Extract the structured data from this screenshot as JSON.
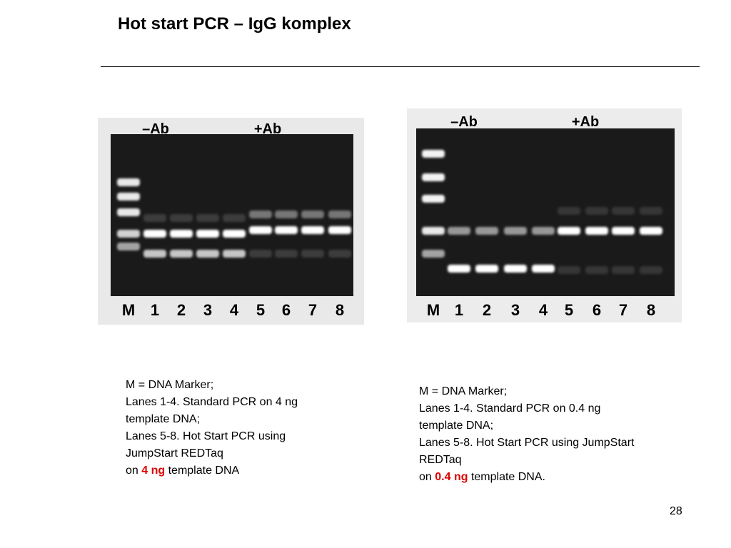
{
  "title": "Hot start PCR – IgG komplex",
  "gels": [
    {
      "groups": [
        "–Ab",
        "+Ab"
      ],
      "lanes": [
        "M",
        "1",
        "2",
        "3",
        "4",
        "5",
        "6",
        "7",
        "8"
      ],
      "caption": {
        "lines": [
          "M = DNA Marker;",
          "Lanes 1-4. Standard PCR on 4 ng",
          "template DNA;",
          "Lanes 5-8. Hot Start PCR using",
          "JumpStart REDTaq"
        ],
        "last": {
          "prefix": "on",
          "highlight": "4 ng",
          "suffix": "template DNA"
        }
      }
    },
    {
      "groups": [
        "–Ab",
        "+Ab"
      ],
      "lanes": [
        "M",
        "1",
        "2",
        "3",
        "4",
        "5",
        "6",
        "7",
        "8"
      ],
      "caption": {
        "lines": [
          "M = DNA Marker;",
          "Lanes 1-4. Standard PCR on 0.4 ng",
          "template DNA;",
          "Lanes 5-8. Hot Start PCR using JumpStart",
          "REDTaq"
        ],
        "last": {
          "prefix": "on",
          "highlight": "0.4 ng",
          "suffix": "template DNA."
        }
      }
    }
  ],
  "page_number": "28"
}
